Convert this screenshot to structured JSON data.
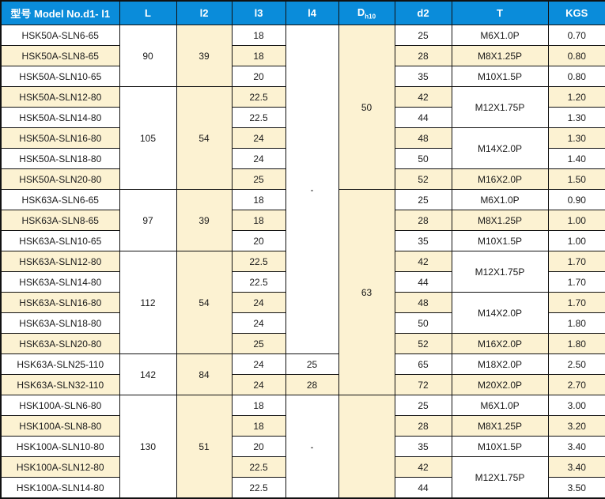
{
  "colors": {
    "header_bg": "#0a8cda",
    "header_text": "#ffffff",
    "cream": "#fcf2d2",
    "white": "#ffffff",
    "border": "#111111",
    "text": "#1a1a1a"
  },
  "table": {
    "columns": [
      {
        "key": "model",
        "label": "型号 Model No.d1- l1"
      },
      {
        "key": "L",
        "label": "L"
      },
      {
        "key": "l2",
        "label": "l2"
      },
      {
        "key": "l3",
        "label": "l3"
      },
      {
        "key": "l4",
        "label": "l4"
      },
      {
        "key": "D",
        "label": "D",
        "sub": "h10"
      },
      {
        "key": "d2",
        "label": "d2"
      },
      {
        "key": "T",
        "label": "T"
      },
      {
        "key": "KGS",
        "label": "KGS"
      }
    ],
    "rows": [
      [
        {
          "col": "model",
          "v": "HSK50A-SLN6-65",
          "bg": "w"
        },
        {
          "col": "L",
          "v": "90",
          "rs": 3,
          "bg": "w"
        },
        {
          "col": "l2",
          "v": "39",
          "rs": 3,
          "bg": "c"
        },
        {
          "col": "l3",
          "v": "18",
          "bg": "w"
        },
        {
          "col": "l4",
          "v": "-",
          "rs": 16,
          "bg": "w"
        },
        {
          "col": "D",
          "v": "50",
          "rs": 8,
          "bg": "c"
        },
        {
          "col": "d2",
          "v": "25",
          "bg": "w"
        },
        {
          "col": "T",
          "v": "M6X1.0P",
          "bg": "w"
        },
        {
          "col": "KGS",
          "v": "0.70",
          "bg": "w"
        }
      ],
      [
        {
          "col": "model",
          "v": "HSK50A-SLN8-65",
          "bg": "c"
        },
        {
          "col": "l3",
          "v": "18",
          "bg": "c"
        },
        {
          "col": "d2",
          "v": "28",
          "bg": "c"
        },
        {
          "col": "T",
          "v": "M8X1.25P",
          "bg": "c"
        },
        {
          "col": "KGS",
          "v": "0.80",
          "bg": "c"
        }
      ],
      [
        {
          "col": "model",
          "v": "HSK50A-SLN10-65",
          "bg": "w"
        },
        {
          "col": "l3",
          "v": "20",
          "bg": "w"
        },
        {
          "col": "d2",
          "v": "35",
          "bg": "w"
        },
        {
          "col": "T",
          "v": "M10X1.5P",
          "bg": "w"
        },
        {
          "col": "KGS",
          "v": "0.80",
          "bg": "w"
        }
      ],
      [
        {
          "col": "model",
          "v": "HSK50A-SLN12-80",
          "bg": "c"
        },
        {
          "col": "L",
          "v": "105",
          "rs": 5,
          "bg": "w"
        },
        {
          "col": "l2",
          "v": "54",
          "rs": 5,
          "bg": "c"
        },
        {
          "col": "l3",
          "v": "22.5",
          "bg": "c"
        },
        {
          "col": "d2",
          "v": "42",
          "bg": "c"
        },
        {
          "col": "T",
          "v": "M12X1.75P",
          "rs": 2,
          "bg": "w"
        },
        {
          "col": "KGS",
          "v": "1.20",
          "bg": "c"
        }
      ],
      [
        {
          "col": "model",
          "v": "HSK50A-SLN14-80",
          "bg": "w"
        },
        {
          "col": "l3",
          "v": "22.5",
          "bg": "w"
        },
        {
          "col": "d2",
          "v": "44",
          "bg": "w"
        },
        {
          "col": "KGS",
          "v": "1.30",
          "bg": "w"
        }
      ],
      [
        {
          "col": "model",
          "v": "HSK50A-SLN16-80",
          "bg": "c"
        },
        {
          "col": "l3",
          "v": "24",
          "bg": "c"
        },
        {
          "col": "d2",
          "v": "48",
          "bg": "c"
        },
        {
          "col": "T",
          "v": "M14X2.0P",
          "rs": 2,
          "bg": "w"
        },
        {
          "col": "KGS",
          "v": "1.30",
          "bg": "c"
        }
      ],
      [
        {
          "col": "model",
          "v": "HSK50A-SLN18-80",
          "bg": "w"
        },
        {
          "col": "l3",
          "v": "24",
          "bg": "w"
        },
        {
          "col": "d2",
          "v": "50",
          "bg": "w"
        },
        {
          "col": "KGS",
          "v": "1.40",
          "bg": "w"
        }
      ],
      [
        {
          "col": "model",
          "v": "HSK50A-SLN20-80",
          "bg": "c"
        },
        {
          "col": "l3",
          "v": "25",
          "bg": "c"
        },
        {
          "col": "d2",
          "v": "52",
          "bg": "c"
        },
        {
          "col": "T",
          "v": "M16X2.0P",
          "bg": "c"
        },
        {
          "col": "KGS",
          "v": "1.50",
          "bg": "c"
        }
      ],
      [
        {
          "col": "model",
          "v": "HSK63A-SLN6-65",
          "bg": "w"
        },
        {
          "col": "L",
          "v": "97",
          "rs": 3,
          "bg": "w"
        },
        {
          "col": "l2",
          "v": "39",
          "rs": 3,
          "bg": "c"
        },
        {
          "col": "l3",
          "v": "18",
          "bg": "w"
        },
        {
          "col": "D",
          "v": "63",
          "rs": 10,
          "bg": "c"
        },
        {
          "col": "d2",
          "v": "25",
          "bg": "w"
        },
        {
          "col": "T",
          "v": "M6X1.0P",
          "bg": "w"
        },
        {
          "col": "KGS",
          "v": "0.90",
          "bg": "w"
        }
      ],
      [
        {
          "col": "model",
          "v": "HSK63A-SLN8-65",
          "bg": "c"
        },
        {
          "col": "l3",
          "v": "18",
          "bg": "c"
        },
        {
          "col": "d2",
          "v": "28",
          "bg": "c"
        },
        {
          "col": "T",
          "v": "M8X1.25P",
          "bg": "c"
        },
        {
          "col": "KGS",
          "v": "1.00",
          "bg": "c"
        }
      ],
      [
        {
          "col": "model",
          "v": "HSK63A-SLN10-65",
          "bg": "w"
        },
        {
          "col": "l3",
          "v": "20",
          "bg": "w"
        },
        {
          "col": "d2",
          "v": "35",
          "bg": "w"
        },
        {
          "col": "T",
          "v": "M10X1.5P",
          "bg": "w"
        },
        {
          "col": "KGS",
          "v": "1.00",
          "bg": "w"
        }
      ],
      [
        {
          "col": "model",
          "v": "HSK63A-SLN12-80",
          "bg": "c"
        },
        {
          "col": "L",
          "v": "112",
          "rs": 5,
          "bg": "w"
        },
        {
          "col": "l2",
          "v": "54",
          "rs": 5,
          "bg": "c"
        },
        {
          "col": "l3",
          "v": "22.5",
          "bg": "c"
        },
        {
          "col": "d2",
          "v": "42",
          "bg": "c"
        },
        {
          "col": "T",
          "v": "M12X1.75P",
          "rs": 2,
          "bg": "w"
        },
        {
          "col": "KGS",
          "v": "1.70",
          "bg": "c"
        }
      ],
      [
        {
          "col": "model",
          "v": "HSK63A-SLN14-80",
          "bg": "w"
        },
        {
          "col": "l3",
          "v": "22.5",
          "bg": "w"
        },
        {
          "col": "d2",
          "v": "44",
          "bg": "w"
        },
        {
          "col": "KGS",
          "v": "1.70",
          "bg": "w"
        }
      ],
      [
        {
          "col": "model",
          "v": "HSK63A-SLN16-80",
          "bg": "c"
        },
        {
          "col": "l3",
          "v": "24",
          "bg": "c"
        },
        {
          "col": "d2",
          "v": "48",
          "bg": "c"
        },
        {
          "col": "T",
          "v": "M14X2.0P",
          "rs": 2,
          "bg": "w"
        },
        {
          "col": "KGS",
          "v": "1.70",
          "bg": "c"
        }
      ],
      [
        {
          "col": "model",
          "v": "HSK63A-SLN18-80",
          "bg": "w"
        },
        {
          "col": "l3",
          "v": "24",
          "bg": "w"
        },
        {
          "col": "d2",
          "v": "50",
          "bg": "w"
        },
        {
          "col": "KGS",
          "v": "1.80",
          "bg": "w"
        }
      ],
      [
        {
          "col": "model",
          "v": "HSK63A-SLN20-80",
          "bg": "c"
        },
        {
          "col": "l3",
          "v": "25",
          "bg": "c"
        },
        {
          "col": "d2",
          "v": "52",
          "bg": "c"
        },
        {
          "col": "T",
          "v": "M16X2.0P",
          "bg": "c"
        },
        {
          "col": "KGS",
          "v": "1.80",
          "bg": "c"
        }
      ],
      [
        {
          "col": "model",
          "v": "HSK63A-SLN25-110",
          "bg": "w"
        },
        {
          "col": "L",
          "v": "142",
          "rs": 2,
          "bg": "w"
        },
        {
          "col": "l2",
          "v": "84",
          "rs": 2,
          "bg": "c"
        },
        {
          "col": "l3",
          "v": "24",
          "bg": "w"
        },
        {
          "col": "l4",
          "v": "25",
          "bg": "w"
        },
        {
          "col": "d2",
          "v": "65",
          "bg": "w"
        },
        {
          "col": "T",
          "v": "M18X2.0P",
          "bg": "w"
        },
        {
          "col": "KGS",
          "v": "2.50",
          "bg": "w"
        }
      ],
      [
        {
          "col": "model",
          "v": "HSK63A-SLN32-110",
          "bg": "c"
        },
        {
          "col": "l3",
          "v": "24",
          "bg": "c"
        },
        {
          "col": "l4",
          "v": "28",
          "bg": "c"
        },
        {
          "col": "d2",
          "v": "72",
          "bg": "c"
        },
        {
          "col": "T",
          "v": "M20X2.0P",
          "bg": "c"
        },
        {
          "col": "KGS",
          "v": "2.70",
          "bg": "c"
        }
      ],
      [
        {
          "col": "model",
          "v": "HSK100A-SLN6-80",
          "bg": "w"
        },
        {
          "col": "L",
          "v": "130",
          "rs": 5,
          "bg": "w"
        },
        {
          "col": "l2",
          "v": "51",
          "rs": 5,
          "bg": "c"
        },
        {
          "col": "l3",
          "v": "18",
          "bg": "w"
        },
        {
          "col": "l4",
          "v": "-",
          "rs": 5,
          "bg": "w"
        },
        {
          "col": "D",
          "v": "",
          "rs": 5,
          "bg": "c"
        },
        {
          "col": "d2",
          "v": "25",
          "bg": "w"
        },
        {
          "col": "T",
          "v": "M6X1.0P",
          "bg": "w"
        },
        {
          "col": "KGS",
          "v": "3.00",
          "bg": "w"
        }
      ],
      [
        {
          "col": "model",
          "v": "HSK100A-SLN8-80",
          "bg": "c"
        },
        {
          "col": "l3",
          "v": "18",
          "bg": "c"
        },
        {
          "col": "d2",
          "v": "28",
          "bg": "c"
        },
        {
          "col": "T",
          "v": "M8X1.25P",
          "bg": "c"
        },
        {
          "col": "KGS",
          "v": "3.20",
          "bg": "c"
        }
      ],
      [
        {
          "col": "model",
          "v": "HSK100A-SLN10-80",
          "bg": "w"
        },
        {
          "col": "l3",
          "v": "20",
          "bg": "w"
        },
        {
          "col": "d2",
          "v": "35",
          "bg": "w"
        },
        {
          "col": "T",
          "v": "M10X1.5P",
          "bg": "w"
        },
        {
          "col": "KGS",
          "v": "3.40",
          "bg": "w"
        }
      ],
      [
        {
          "col": "model",
          "v": "HSK100A-SLN12-80",
          "bg": "c"
        },
        {
          "col": "l3",
          "v": "22.5",
          "bg": "c"
        },
        {
          "col": "d2",
          "v": "42",
          "bg": "c"
        },
        {
          "col": "T",
          "v": "M12X1.75P",
          "rs": 2,
          "bg": "w"
        },
        {
          "col": "KGS",
          "v": "3.40",
          "bg": "c"
        }
      ],
      [
        {
          "col": "model",
          "v": "HSK100A-SLN14-80",
          "bg": "w"
        },
        {
          "col": "l3",
          "v": "22.5",
          "bg": "w"
        },
        {
          "col": "d2",
          "v": "44",
          "bg": "w"
        },
        {
          "col": "KGS",
          "v": "3.50",
          "bg": "w"
        }
      ]
    ]
  }
}
